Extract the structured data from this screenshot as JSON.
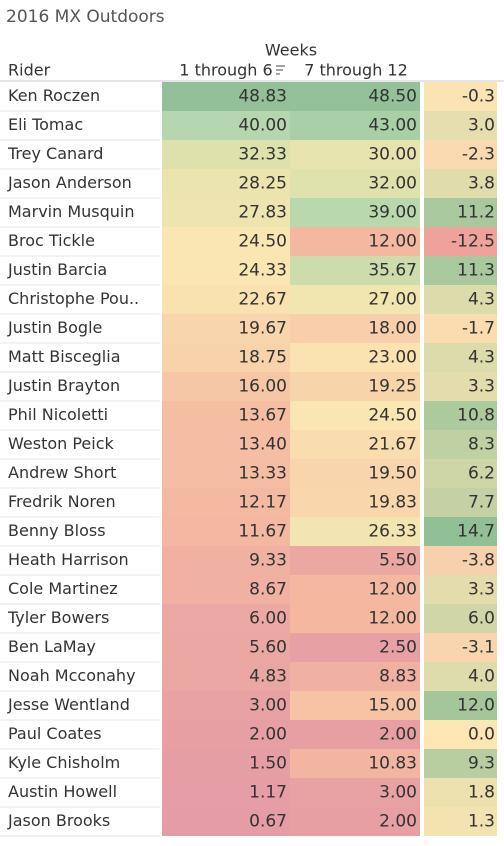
{
  "title": "2016 MX Outdoors",
  "header": {
    "group": "Weeks",
    "row_label": "Rider",
    "columns": [
      "1 through 6",
      "7 through 12"
    ]
  },
  "table": {
    "rows": [
      [
        "Ken Roczen",
        "48.83",
        "48.50",
        "-0.3"
      ],
      [
        "Eli Tomac",
        "40.00",
        "43.00",
        "3.0"
      ],
      [
        "Trey Canard",
        "32.33",
        "30.00",
        "-2.3"
      ],
      [
        "Jason Anderson",
        "28.25",
        "32.00",
        "3.8"
      ],
      [
        "Marvin Musquin",
        "27.83",
        "39.00",
        "11.2"
      ],
      [
        "Broc Tickle",
        "24.50",
        "12.00",
        "-12.5"
      ],
      [
        "Justin Barcia",
        "24.33",
        "35.67",
        "11.3"
      ],
      [
        "Christophe Pou..",
        "22.67",
        "27.00",
        "4.3"
      ],
      [
        "Justin Bogle",
        "19.67",
        "18.00",
        "-1.7"
      ],
      [
        "Matt Bisceglia",
        "18.75",
        "23.00",
        "4.3"
      ],
      [
        "Justin Brayton",
        "16.00",
        "19.25",
        "3.3"
      ],
      [
        "Phil Nicoletti",
        "13.67",
        "24.50",
        "10.8"
      ],
      [
        "Weston Peick",
        "13.40",
        "21.67",
        "8.3"
      ],
      [
        "Andrew Short",
        "13.33",
        "19.50",
        "6.2"
      ],
      [
        "Fredrik Noren",
        "12.17",
        "19.83",
        "7.7"
      ],
      [
        "Benny Bloss",
        "11.67",
        "26.33",
        "14.7"
      ],
      [
        "Heath Harrison",
        "9.33",
        "5.50",
        "-3.8"
      ],
      [
        "Cole Martinez",
        "8.67",
        "12.00",
        "3.3"
      ],
      [
        "Tyler Bowers",
        "6.00",
        "12.00",
        "6.0"
      ],
      [
        "Ben LaMay",
        "5.60",
        "2.50",
        "-3.1"
      ],
      [
        "Noah Mcconahy",
        "4.83",
        "8.83",
        "4.0"
      ],
      [
        "Jesse Wentland",
        "3.00",
        "15.00",
        "12.0"
      ],
      [
        "Paul Coates",
        "2.00",
        "2.00",
        "0.0"
      ],
      [
        "Kyle Chisholm",
        "1.50",
        "10.83",
        "9.3"
      ],
      [
        "Austin Howell",
        "1.17",
        "3.00",
        "1.8"
      ],
      [
        "Jason Brooks",
        "0.67",
        "2.00",
        "1.3"
      ]
    ]
  }
}
